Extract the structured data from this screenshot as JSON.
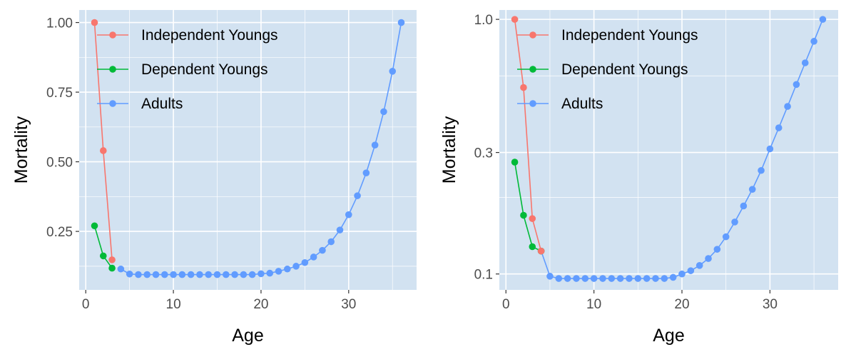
{
  "chart_data": [
    {
      "type": "line",
      "scale": "linear",
      "xlabel": "Age",
      "ylabel": "Mortality",
      "xlim": [
        -0.75,
        37.75
      ],
      "ylim": [
        0.04,
        1.045
      ],
      "xticks": [
        0,
        10,
        20,
        30
      ],
      "xtick_labels": [
        "0",
        "10",
        "20",
        "30"
      ],
      "yticks": [
        0.25,
        0.5,
        0.75,
        1.0
      ],
      "ytick_labels": [
        "0.25",
        "0.50",
        "0.75",
        "1.00"
      ],
      "grid": true,
      "legend_position": "top-left",
      "series": [
        {
          "name": "Independent Youngs",
          "color": "#F8766D",
          "x": [
            1,
            2,
            3
          ],
          "y": [
            1.0,
            0.54,
            0.148
          ]
        },
        {
          "name": "Dependent Youngs",
          "color": "#00BA38",
          "x": [
            1,
            2,
            3
          ],
          "y": [
            0.27,
            0.162,
            0.118
          ]
        },
        {
          "name": "Adults",
          "color": "#619CFF",
          "x": [
            4,
            5,
            6,
            7,
            8,
            9,
            10,
            11,
            12,
            13,
            14,
            15,
            16,
            17,
            18,
            19,
            20,
            21,
            22,
            23,
            24,
            25,
            26,
            27,
            28,
            29,
            30,
            31,
            32,
            33,
            34,
            35,
            36
          ],
          "y": [
            0.115,
            0.097,
            0.095,
            0.095,
            0.095,
            0.095,
            0.095,
            0.095,
            0.095,
            0.095,
            0.095,
            0.095,
            0.095,
            0.095,
            0.095,
            0.095,
            0.098,
            0.1,
            0.107,
            0.115,
            0.125,
            0.138,
            0.158,
            0.182,
            0.213,
            0.255,
            0.31,
            0.378,
            0.46,
            0.56,
            0.68,
            0.825,
            1.0
          ]
        }
      ]
    },
    {
      "type": "line",
      "scale": "log",
      "xlabel": "Age",
      "ylabel": "Mortality",
      "xlim": [
        -0.75,
        37.75
      ],
      "ylim": [
        0.0866,
        1.0884
      ],
      "xticks": [
        0,
        10,
        20,
        30
      ],
      "xtick_labels": [
        "0",
        "10",
        "20",
        "30"
      ],
      "yticks": [
        0.1,
        0.3,
        1.0
      ],
      "ytick_labels": [
        "0.1",
        "0.3",
        "1.0"
      ],
      "minor_yticks": [
        0.2,
        0.6
      ],
      "grid": true,
      "legend_position": "top-left",
      "series": [
        {
          "name": "Independent Youngs",
          "color": "#F8766D",
          "x": [
            1,
            2,
            3,
            4
          ],
          "y": [
            1.0,
            0.54,
            0.165,
            0.123
          ]
        },
        {
          "name": "Dependent Youngs",
          "color": "#00BA38",
          "x": [
            1,
            2,
            3,
            4
          ],
          "y": [
            0.275,
            0.17,
            0.128,
            0.123
          ]
        },
        {
          "name": "Adults",
          "color": "#619CFF",
          "x": [
            4,
            5,
            6,
            7,
            8,
            9,
            10,
            11,
            12,
            13,
            14,
            15,
            16,
            17,
            18,
            19,
            20,
            21,
            22,
            23,
            24,
            25,
            26,
            27,
            28,
            29,
            30,
            31,
            32,
            33,
            34,
            35,
            36
          ],
          "y": [
            0.123,
            0.098,
            0.096,
            0.096,
            0.096,
            0.096,
            0.096,
            0.096,
            0.096,
            0.096,
            0.096,
            0.096,
            0.096,
            0.096,
            0.096,
            0.097,
            0.1,
            0.103,
            0.108,
            0.115,
            0.125,
            0.14,
            0.16,
            0.185,
            0.215,
            0.255,
            0.31,
            0.375,
            0.455,
            0.555,
            0.675,
            0.82,
            1.0
          ]
        }
      ]
    }
  ]
}
